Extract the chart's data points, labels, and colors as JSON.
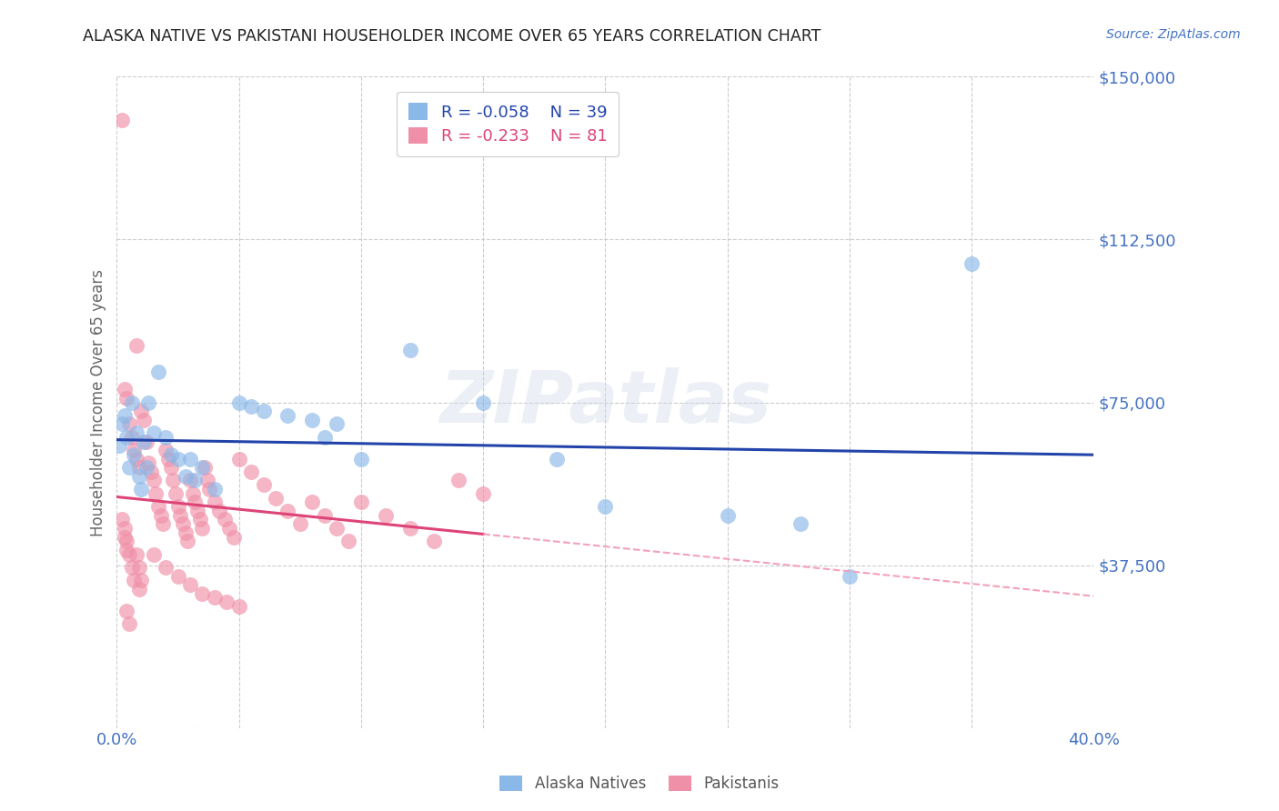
{
  "title": "ALASKA NATIVE VS PAKISTANI HOUSEHOLDER INCOME OVER 65 YEARS CORRELATION CHART",
  "source": "Source: ZipAtlas.com",
  "ylabel": "Householder Income Over 65 years",
  "xlim": [
    0.0,
    0.4
  ],
  "ylim": [
    0,
    150000
  ],
  "yticks": [
    0,
    37500,
    75000,
    112500,
    150000
  ],
  "ytick_labels": [
    "",
    "$37,500",
    "$75,000",
    "$112,500",
    "$150,000"
  ],
  "xticks": [
    0.0,
    0.05,
    0.1,
    0.15,
    0.2,
    0.25,
    0.3,
    0.35,
    0.4
  ],
  "alaska_color": "#8ab8e8",
  "pakistani_color": "#f090a8",
  "title_color": "#222222",
  "axis_label_color": "#666666",
  "tick_color": "#4472c4",
  "grid_color": "#cccccc",
  "alaska_line_color": "#2244aa",
  "pakistani_line_color": "#dd4477",
  "pakistani_dashed_color": "#f4a0b8",
  "watermark_text": "ZIPatlas",
  "legend_R_alaska": "-0.058",
  "legend_N_alaska": "39",
  "legend_R_pakistani": "-0.233",
  "legend_N_pakistani": "81",
  "alaska_scatter": [
    [
      0.001,
      65000
    ],
    [
      0.002,
      70000
    ],
    [
      0.003,
      72000
    ],
    [
      0.004,
      67000
    ],
    [
      0.005,
      60000
    ],
    [
      0.006,
      75000
    ],
    [
      0.007,
      63000
    ],
    [
      0.008,
      68000
    ],
    [
      0.009,
      58000
    ],
    [
      0.01,
      55000
    ],
    [
      0.011,
      66000
    ],
    [
      0.012,
      60000
    ],
    [
      0.013,
      75000
    ],
    [
      0.015,
      68000
    ],
    [
      0.017,
      82000
    ],
    [
      0.02,
      67000
    ],
    [
      0.022,
      63000
    ],
    [
      0.025,
      62000
    ],
    [
      0.028,
      58000
    ],
    [
      0.03,
      62000
    ],
    [
      0.032,
      57000
    ],
    [
      0.035,
      60000
    ],
    [
      0.04,
      55000
    ],
    [
      0.05,
      75000
    ],
    [
      0.055,
      74000
    ],
    [
      0.06,
      73000
    ],
    [
      0.07,
      72000
    ],
    [
      0.08,
      71000
    ],
    [
      0.085,
      67000
    ],
    [
      0.09,
      70000
    ],
    [
      0.1,
      62000
    ],
    [
      0.12,
      87000
    ],
    [
      0.15,
      75000
    ],
    [
      0.18,
      62000
    ],
    [
      0.2,
      51000
    ],
    [
      0.25,
      49000
    ],
    [
      0.28,
      47000
    ],
    [
      0.3,
      35000
    ],
    [
      0.35,
      107000
    ]
  ],
  "pakistani_scatter": [
    [
      0.002,
      140000
    ],
    [
      0.008,
      88000
    ],
    [
      0.003,
      78000
    ],
    [
      0.004,
      76000
    ],
    [
      0.005,
      70000
    ],
    [
      0.006,
      67000
    ],
    [
      0.007,
      64000
    ],
    [
      0.008,
      62000
    ],
    [
      0.009,
      60000
    ],
    [
      0.01,
      73000
    ],
    [
      0.011,
      71000
    ],
    [
      0.012,
      66000
    ],
    [
      0.013,
      61000
    ],
    [
      0.014,
      59000
    ],
    [
      0.015,
      57000
    ],
    [
      0.016,
      54000
    ],
    [
      0.017,
      51000
    ],
    [
      0.018,
      49000
    ],
    [
      0.019,
      47000
    ],
    [
      0.02,
      64000
    ],
    [
      0.021,
      62000
    ],
    [
      0.022,
      60000
    ],
    [
      0.023,
      57000
    ],
    [
      0.024,
      54000
    ],
    [
      0.025,
      51000
    ],
    [
      0.026,
      49000
    ],
    [
      0.027,
      47000
    ],
    [
      0.028,
      45000
    ],
    [
      0.029,
      43000
    ],
    [
      0.03,
      57000
    ],
    [
      0.031,
      54000
    ],
    [
      0.032,
      52000
    ],
    [
      0.033,
      50000
    ],
    [
      0.034,
      48000
    ],
    [
      0.035,
      46000
    ],
    [
      0.036,
      60000
    ],
    [
      0.037,
      57000
    ],
    [
      0.038,
      55000
    ],
    [
      0.04,
      52000
    ],
    [
      0.042,
      50000
    ],
    [
      0.044,
      48000
    ],
    [
      0.046,
      46000
    ],
    [
      0.048,
      44000
    ],
    [
      0.05,
      62000
    ],
    [
      0.055,
      59000
    ],
    [
      0.06,
      56000
    ],
    [
      0.065,
      53000
    ],
    [
      0.07,
      50000
    ],
    [
      0.075,
      47000
    ],
    [
      0.08,
      52000
    ],
    [
      0.085,
      49000
    ],
    [
      0.09,
      46000
    ],
    [
      0.095,
      43000
    ],
    [
      0.1,
      52000
    ],
    [
      0.11,
      49000
    ],
    [
      0.12,
      46000
    ],
    [
      0.13,
      43000
    ],
    [
      0.14,
      57000
    ],
    [
      0.15,
      54000
    ],
    [
      0.003,
      46000
    ],
    [
      0.004,
      43000
    ],
    [
      0.005,
      40000
    ],
    [
      0.006,
      37000
    ],
    [
      0.007,
      34000
    ],
    [
      0.008,
      40000
    ],
    [
      0.009,
      37000
    ],
    [
      0.01,
      34000
    ],
    [
      0.015,
      40000
    ],
    [
      0.02,
      37000
    ],
    [
      0.025,
      35000
    ],
    [
      0.03,
      33000
    ],
    [
      0.035,
      31000
    ],
    [
      0.04,
      30000
    ],
    [
      0.045,
      29000
    ],
    [
      0.05,
      28000
    ],
    [
      0.004,
      27000
    ],
    [
      0.005,
      24000
    ],
    [
      0.009,
      32000
    ],
    [
      0.002,
      48000
    ],
    [
      0.003,
      44000
    ],
    [
      0.004,
      41000
    ]
  ]
}
